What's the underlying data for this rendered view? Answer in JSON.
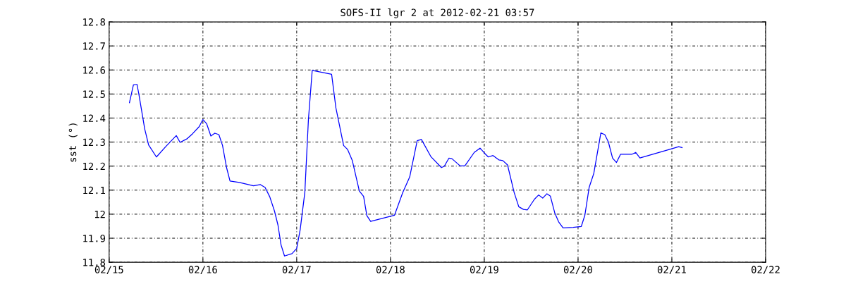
{
  "chart_data": {
    "type": "line",
    "title": "SOFS-II lgr 2 at 2012-02-21 03:57",
    "ylabel": "sst (°)",
    "x": [
      "2012-02-15T05:12",
      "2012-02-15T06:13",
      "2012-02-15T07:08",
      "2012-02-15T07:36",
      "2012-02-15T09:06",
      "2012-02-15T10:06",
      "2012-02-15T12:06",
      "2012-02-15T14:28",
      "2012-02-15T17:11",
      "2012-02-15T18:09",
      "2012-02-15T19:52",
      "2012-02-15T21:22",
      "2012-02-15T23:02",
      "2012-02-16T00:00",
      "2012-02-16T00:58",
      "2012-02-16T02:02",
      "2012-02-16T03:03",
      "2012-02-16T04:05",
      "2012-02-16T05:01",
      "2012-02-16T06:03",
      "2012-02-16T06:56",
      "2012-02-16T09:20",
      "2012-02-16T12:56",
      "2012-02-16T14:43",
      "2012-02-16T15:55",
      "2012-02-16T17:07",
      "2012-02-16T18:19",
      "2012-02-16T19:12",
      "2012-02-16T20:00",
      "2012-02-16T20:53",
      "2012-02-16T22:48",
      "2012-02-17T00:00",
      "2012-02-17T00:53",
      "2012-02-17T02:05",
      "2012-02-17T03:00",
      "2012-02-17T03:58",
      "2012-02-17T08:56",
      "2012-02-17T10:02",
      "2012-02-17T12:00",
      "2012-02-17T13:02",
      "2012-02-17T14:14",
      "2012-02-17T16:02",
      "2012-02-17T17:07",
      "2012-02-17T17:57",
      "2012-02-17T18:55",
      "2012-02-18T01:02",
      "2012-02-18T03:07",
      "2012-02-18T04:55",
      "2012-02-18T06:50",
      "2012-02-18T07:55",
      "2012-02-18T10:19",
      "2012-02-18T13:02",
      "2012-02-18T13:45",
      "2012-02-18T14:57",
      "2012-02-18T15:43",
      "2012-02-18T17:50",
      "2012-02-18T19:02",
      "2012-02-18T21:26",
      "2012-02-18T22:55",
      "2012-02-19T00:00",
      "2012-02-19T01:02",
      "2012-02-19T02:14",
      "2012-02-19T03:43",
      "2012-02-19T04:45",
      "2012-02-19T05:57",
      "2012-02-19T07:38",
      "2012-02-19T08:50",
      "2012-02-19T10:02",
      "2012-02-19T11:02",
      "2012-02-19T12:50",
      "2012-02-19T13:55",
      "2012-02-19T14:57",
      "2012-02-19T16:02",
      "2012-02-19T16:55",
      "2012-02-19T18:04",
      "2012-02-19T19:02",
      "2012-02-19T20:10",
      "2012-02-19T22:45",
      "2012-02-20T00:50",
      "2012-02-20T01:45",
      "2012-02-20T02:50",
      "2012-02-20T04:02",
      "2012-02-20T05:50",
      "2012-02-20T06:50",
      "2012-02-20T07:45",
      "2012-02-20T08:50",
      "2012-02-20T09:50",
      "2012-02-20T10:52",
      "2012-02-20T13:45",
      "2012-02-20T14:46",
      "2012-02-20T15:50",
      "2012-02-20T23:57",
      "2012-02-21T01:45",
      "2012-02-21T02:38"
    ],
    "series": [
      {
        "color": "#0000ff",
        "values": [
          12.464,
          12.538,
          12.54,
          12.5,
          12.355,
          12.288,
          12.238,
          12.281,
          12.327,
          12.299,
          12.313,
          12.335,
          12.364,
          12.394,
          12.376,
          12.325,
          12.337,
          12.331,
          12.286,
          12.194,
          12.138,
          12.132,
          12.118,
          12.123,
          12.111,
          12.072,
          12.013,
          11.955,
          11.872,
          11.826,
          11.836,
          11.857,
          11.935,
          12.091,
          12.394,
          12.598,
          12.582,
          12.442,
          12.286,
          12.269,
          12.223,
          12.096,
          12.074,
          11.994,
          11.97,
          11.996,
          12.089,
          12.155,
          12.306,
          12.311,
          12.24,
          12.194,
          12.199,
          12.233,
          12.231,
          12.201,
          12.201,
          12.257,
          12.275,
          12.255,
          12.238,
          12.244,
          12.226,
          12.223,
          12.205,
          12.091,
          12.031,
          12.02,
          12.018,
          12.062,
          12.08,
          12.067,
          12.085,
          12.075,
          12.004,
          11.968,
          11.943,
          11.945,
          11.949,
          11.996,
          12.111,
          12.17,
          12.338,
          12.331,
          12.301,
          12.233,
          12.215,
          12.249,
          12.249,
          12.257,
          12.234,
          12.272,
          12.281,
          12.277
        ]
      }
    ],
    "xlim": [
      "2012-02-15",
      "2012-02-22"
    ],
    "xticks": [
      {
        "value": "2012-02-15",
        "label": "02/15"
      },
      {
        "value": "2012-02-16",
        "label": "02/16"
      },
      {
        "value": "2012-02-17",
        "label": "02/17"
      },
      {
        "value": "2012-02-18",
        "label": "02/18"
      },
      {
        "value": "2012-02-19",
        "label": "02/19"
      },
      {
        "value": "2012-02-20",
        "label": "02/20"
      },
      {
        "value": "2012-02-21",
        "label": "02/21"
      },
      {
        "value": "2012-02-22",
        "label": "02/22"
      }
    ],
    "ylim": [
      11.8,
      12.8
    ],
    "yticks": [
      11.8,
      11.9,
      12,
      12.1,
      12.2,
      12.3,
      12.4,
      12.5,
      12.6,
      12.7,
      12.8
    ],
    "grid": true,
    "line_style": "solid",
    "marker": "none"
  }
}
